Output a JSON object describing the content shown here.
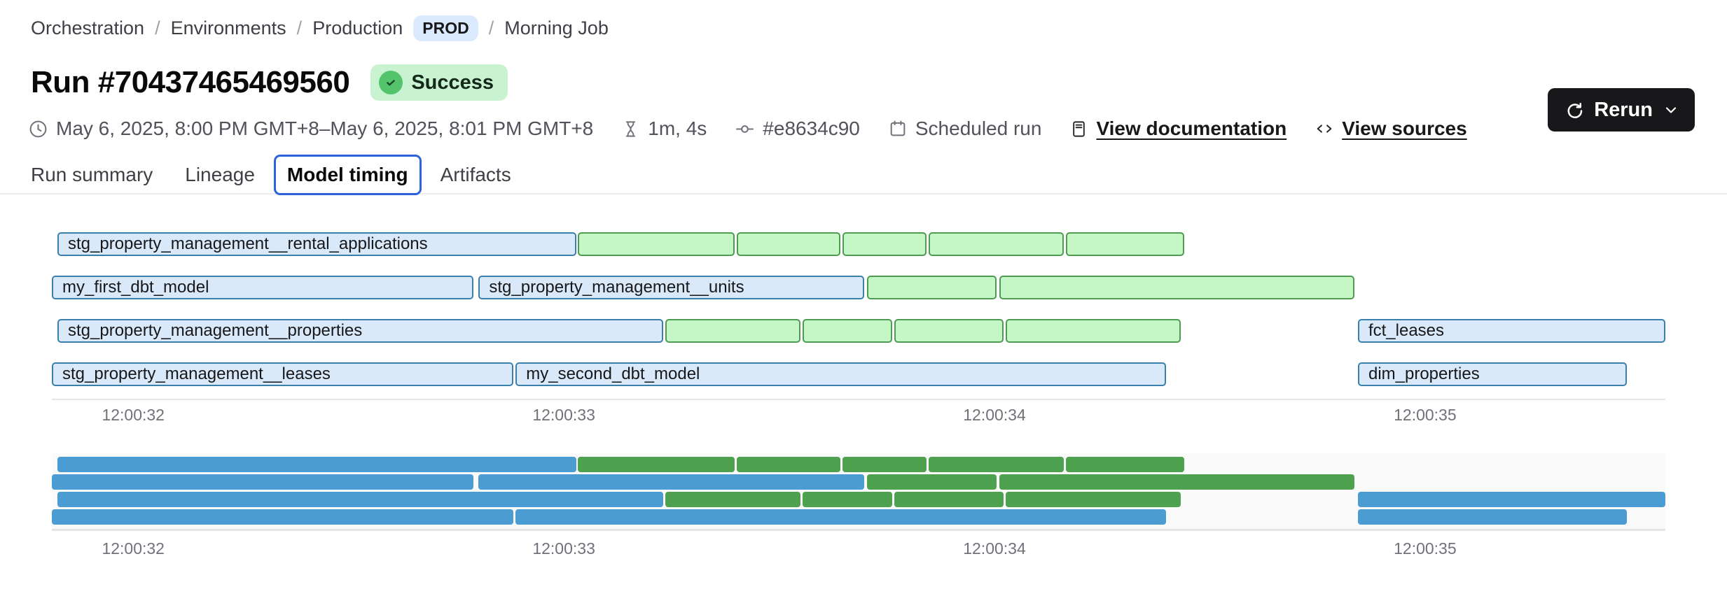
{
  "breadcrumb": {
    "separator": "/",
    "items": [
      "Orchestration",
      "Environments",
      "Production",
      "Morning Job"
    ],
    "env_badge": "PROD"
  },
  "run": {
    "title": "Run #70437465469560",
    "status": "Success"
  },
  "meta": {
    "schedule": "May 6, 2025, 8:00 PM GMT+8–May 6, 2025, 8:01 PM GMT+8",
    "duration": "1m, 4s",
    "commit": "#e8634c90",
    "trigger": "Scheduled run",
    "docs": "View documentation",
    "sources": "View sources"
  },
  "rerun": {
    "label": "Rerun"
  },
  "tabs": [
    {
      "label": "Run summary",
      "selected": false
    },
    {
      "label": "Lineage",
      "selected": false
    },
    {
      "label": "Model timing",
      "selected": true
    },
    {
      "label": "Artifacts",
      "selected": false
    }
  ],
  "chart_data": {
    "type": "gantt",
    "title": "Model timing",
    "time_unit": "seconds of 12:00",
    "domain": [
      31.811,
      35.558
    ],
    "x_ticks": [
      {
        "label": "12:00:32",
        "t": 32
      },
      {
        "label": "12:00:33",
        "t": 33
      },
      {
        "label": "12:00:34",
        "t": 34
      },
      {
        "label": "12:00:35",
        "t": 35
      }
    ],
    "rows": [
      [
        {
          "label": "stg_property_management__rental_applications",
          "kind": "model",
          "start": 31.824,
          "end": 33.029
        },
        {
          "label": "",
          "kind": "test",
          "start": 33.033,
          "end": 33.397
        },
        {
          "label": "",
          "kind": "test",
          "start": 33.402,
          "end": 33.642
        },
        {
          "label": "",
          "kind": "test",
          "start": 33.647,
          "end": 33.843
        },
        {
          "label": "",
          "kind": "test",
          "start": 33.847,
          "end": 34.161
        },
        {
          "label": "",
          "kind": "test",
          "start": 34.166,
          "end": 34.441
        }
      ],
      [
        {
          "label": "my_first_dbt_model",
          "kind": "model",
          "start": 31.811,
          "end": 32.79
        },
        {
          "label": "stg_property_management__units",
          "kind": "model",
          "start": 32.802,
          "end": 33.698
        },
        {
          "label": "",
          "kind": "test",
          "start": 33.704,
          "end": 34.005
        },
        {
          "label": "",
          "kind": "test",
          "start": 34.011,
          "end": 34.836
        }
      ],
      [
        {
          "label": "stg_property_management__properties",
          "kind": "model",
          "start": 31.824,
          "end": 33.231
        },
        {
          "label": "",
          "kind": "test",
          "start": 33.236,
          "end": 33.55
        },
        {
          "label": "",
          "kind": "test",
          "start": 33.554,
          "end": 33.763
        },
        {
          "label": "",
          "kind": "test",
          "start": 33.767,
          "end": 34.021
        },
        {
          "label": "",
          "kind": "test",
          "start": 34.026,
          "end": 34.433
        },
        {
          "label": "fct_leases",
          "kind": "model",
          "start": 34.844,
          "end": 35.558
        }
      ],
      [
        {
          "label": "stg_property_management__leases",
          "kind": "model",
          "start": 31.811,
          "end": 32.883
        },
        {
          "label": "my_second_dbt_model",
          "kind": "model",
          "start": 32.888,
          "end": 34.398
        },
        {
          "label": "dim_properties",
          "kind": "model",
          "start": 34.844,
          "end": 35.469
        }
      ]
    ],
    "colors": {
      "model_fill": "#d9e9fa",
      "model_border": "#3a80ad",
      "test_fill": "#c5f7c6",
      "test_border": "#4e9b52",
      "mini_model": "#4b9cd2",
      "mini_test": "#4ea24f",
      "tab_border": "#2e62d9",
      "status_bg": "#c9f3d0",
      "status_icon": "#53c46b",
      "env_badge_bg": "#dbeafe",
      "rerun_bg": "#18181b"
    }
  }
}
